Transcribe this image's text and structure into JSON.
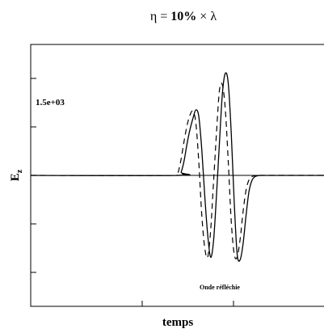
{
  "chart_data": {
    "type": "line",
    "title": {
      "eta": "η",
      "equals": " = ",
      "percent": "10%",
      "times": " × ",
      "lambda": "λ"
    },
    "xlabel": "temps",
    "ylabel": {
      "main": "E",
      "sub": "z"
    },
    "annotations": {
      "amplitude": "1.5e+03",
      "caption": "Onde réfléchie"
    },
    "xlim": [
      0,
      100
    ],
    "ylim": [
      -2000,
      2000
    ],
    "grid": false,
    "legend": "none",
    "baseline": 0,
    "series": [
      {
        "style": "solid",
        "color": "#000000",
        "x": [
          0,
          50,
          51,
          52,
          53,
          54,
          55,
          56,
          57,
          58,
          59,
          60,
          61,
          62,
          63,
          64,
          65,
          66,
          67,
          68,
          69,
          70,
          71,
          72,
          73,
          74,
          75,
          76,
          77,
          78,
          79,
          80,
          100
        ],
        "y": [
          0,
          0,
          50,
          220,
          480,
          700,
          870,
          1000,
          900,
          400,
          -300,
          -900,
          -1250,
          -1000,
          -300,
          500,
          1250,
          1560,
          1400,
          650,
          -400,
          -1200,
          -1290,
          -1050,
          -620,
          -250,
          -80,
          -20,
          -5,
          0,
          0,
          0,
          0
        ]
      },
      {
        "style": "dashed",
        "color": "#000000",
        "x": [
          0,
          49,
          50,
          51,
          52,
          53,
          54,
          55,
          56,
          57,
          58,
          59,
          60,
          61,
          62,
          63,
          64,
          65,
          66,
          67,
          68,
          69,
          70,
          71,
          72,
          73,
          74,
          75,
          76,
          77,
          79,
          100
        ],
        "y": [
          0,
          0,
          50,
          250,
          520,
          760,
          920,
          980,
          800,
          200,
          -600,
          -1100,
          -1250,
          -850,
          -100,
          650,
          1300,
          1380,
          1000,
          200,
          -700,
          -1200,
          -1250,
          -980,
          -560,
          -230,
          -70,
          -20,
          -5,
          0,
          0,
          0
        ]
      }
    ]
  }
}
